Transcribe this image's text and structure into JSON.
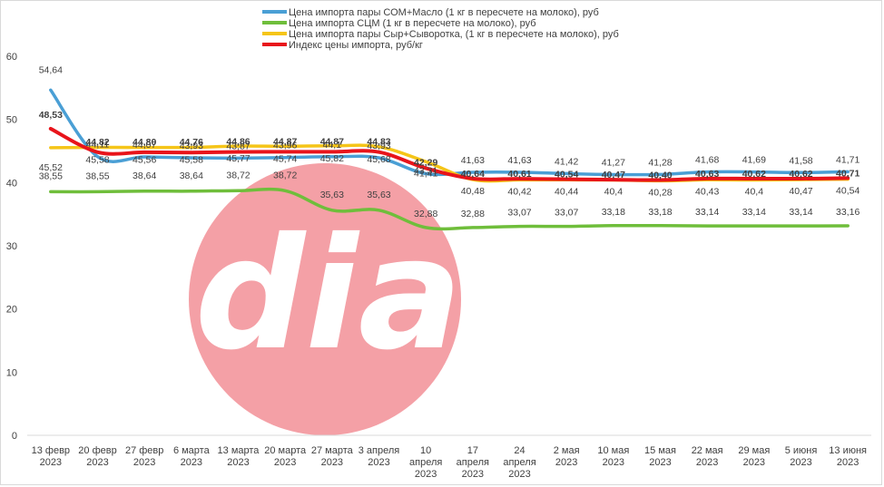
{
  "chart_data": {
    "type": "line",
    "categories": [
      [
        "13 февр",
        "2023"
      ],
      [
        "20 февр",
        "2023"
      ],
      [
        "27 февр",
        "2023"
      ],
      [
        "6 марта",
        "2023"
      ],
      [
        "13 марта",
        "2023"
      ],
      [
        "20 марта",
        "2023"
      ],
      [
        "27 марта",
        "2023"
      ],
      [
        "3 апреля",
        "2023"
      ],
      [
        "10",
        "апреля",
        "2023"
      ],
      [
        "17",
        "апреля",
        "2023"
      ],
      [
        "24",
        "апреля",
        "2023"
      ],
      [
        "2 мая",
        "2023"
      ],
      [
        "10 мая",
        "2023"
      ],
      [
        "15 мая",
        "2023"
      ],
      [
        "22 мая",
        "2023"
      ],
      [
        "29 мая",
        "2023"
      ],
      [
        "5 июня",
        "2023"
      ],
      [
        "13 июня",
        "2023"
      ]
    ],
    "ylim": [
      0,
      60
    ],
    "yticks": [
      0,
      10,
      20,
      30,
      40,
      50,
      60
    ],
    "grid": false,
    "legend_position": "top",
    "series": [
      {
        "name": "Цена импорта пары СОМ+Масло  (1 кг в пересчете на молоко), руб",
        "color": "#4a9fd5",
        "values": [
          54.64,
          44.11,
          44.07,
          43.93,
          43.87,
          43.96,
          44.1,
          43.93,
          41.41,
          41.63,
          41.63,
          41.42,
          41.27,
          41.28,
          41.68,
          41.69,
          41.58,
          41.71
        ],
        "labels": [
          "54,64",
          "44,11",
          "44,07",
          "43,93",
          "43,87",
          "43,96",
          "44,1",
          "43,93",
          "41,41",
          "41,63",
          "41,63",
          "41,42",
          "41,27",
          "41,28",
          "41,68",
          "41,69",
          "41,58",
          "41,71"
        ],
        "labels_bold": false
      },
      {
        "name": "Цена импорта СЦМ (1 кг в пересчете на молоко), руб",
        "color": "#6fbe3b",
        "values": [
          38.55,
          38.55,
          38.64,
          38.64,
          38.72,
          38.72,
          35.63,
          35.63,
          32.88,
          32.88,
          33.07,
          33.07,
          33.18,
          33.18,
          33.14,
          33.14,
          33.14,
          33.16
        ],
        "labels": [
          "38,55",
          "38,55",
          "38,64",
          "38,64",
          "38,72",
          "38,72",
          "35,63",
          "35,63",
          "32,88",
          "32,88",
          "33,07",
          "33,07",
          "33,18",
          "33,18",
          "33,14",
          "33,14",
          "33,14",
          "33,16"
        ],
        "labels_bold": false
      },
      {
        "name": "Цена импорта пары Сыр+Сыворотка, (1 кг в пересчете на молоко), руб",
        "color": "#f5c518",
        "values": [
          45.52,
          45.58,
          45.56,
          45.58,
          45.77,
          45.74,
          45.82,
          45.68,
          43.31,
          40.48,
          40.42,
          40.44,
          40.4,
          40.28,
          40.43,
          40.4,
          40.47,
          40.54
        ],
        "labels": [
          "45,52",
          "45,58",
          "45,56",
          "45,58",
          "45,77",
          "45,74",
          "45,82",
          "45,68",
          "43,31",
          "40,48",
          "40,42",
          "40,44",
          "40,4",
          "40,28",
          "40,43",
          "40,4",
          "40,47",
          "40,54"
        ],
        "labels_bold": false
      },
      {
        "name": "Индекс цены импорта, руб/кг",
        "color": "#e8141b",
        "values": [
          48.53,
          44.82,
          44.8,
          44.76,
          44.86,
          44.87,
          44.87,
          44.83,
          42.29,
          40.64,
          40.61,
          40.54,
          40.47,
          40.4,
          40.63,
          40.62,
          40.62,
          40.71
        ],
        "labels": [
          "48,53",
          "44,82",
          "44,80",
          "44,76",
          "44,86",
          "44,87",
          "44,87",
          "44,83",
          "42,29",
          "40,64",
          "40,61",
          "40,54",
          "40,47",
          "40,40",
          "40,63",
          "40,62",
          "40,62",
          "40,71"
        ],
        "labels_bold": true
      }
    ]
  },
  "watermark": {
    "text": "dia",
    "circle_color": "#f4a0a6",
    "text_color": "#ffffff"
  }
}
